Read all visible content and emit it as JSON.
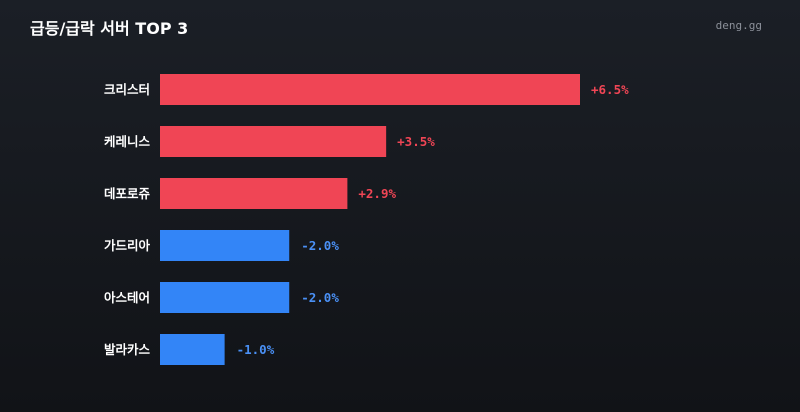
{
  "header": {
    "title": "급등/급락 서버 TOP 3",
    "brand": "deng.gg"
  },
  "colors": {
    "up": "#f04555",
    "down": "#3385f7",
    "up_text": "#f04555",
    "down_text": "#4a90f5"
  },
  "chart_data": {
    "type": "bar",
    "orientation": "horizontal",
    "title": "급등/급락 서버 TOP 3",
    "categories": [
      "크리스터",
      "케레니스",
      "데포로쥬",
      "가드리아",
      "아스테어",
      "발라카스"
    ],
    "values": [
      6.5,
      3.5,
      2.9,
      -2.0,
      -2.0,
      -1.0
    ],
    "value_labels": [
      "+6.5%",
      "+3.5%",
      "+2.9%",
      "-2.0%",
      "-2.0%",
      "-1.0%"
    ],
    "grid": false,
    "legend": "none"
  }
}
